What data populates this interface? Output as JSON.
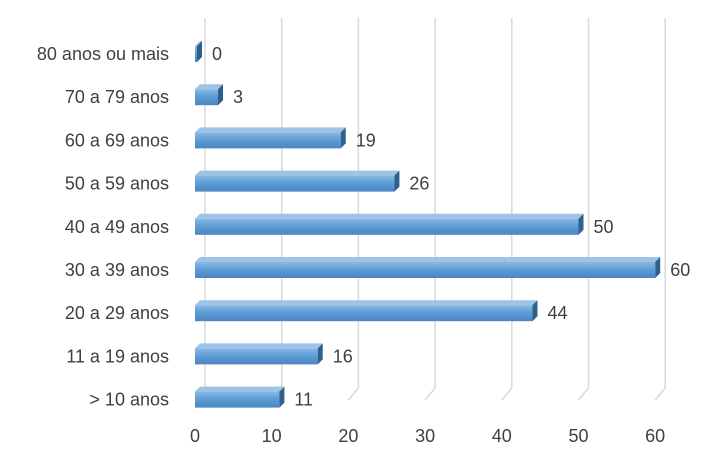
{
  "chart_data": {
    "type": "bar",
    "orientation": "horizontal",
    "style": "3d",
    "categories": [
      "80 anos ou mais",
      "70 a 79 anos",
      "60 a 69 anos",
      "50 a 59 anos",
      "40 a 49 anos",
      "30 a 39 anos",
      "20 a 29 anos",
      "11 a 19 anos",
      "> 10 anos"
    ],
    "values": [
      0,
      3,
      19,
      26,
      50,
      60,
      44,
      16,
      11
    ],
    "title": "",
    "xlabel": "",
    "ylabel": "",
    "xlim": [
      0,
      60
    ],
    "xticks": [
      0,
      10,
      20,
      30,
      40,
      50,
      60
    ],
    "grid": "vertical",
    "legend": "none",
    "data_labels": true,
    "colors": {
      "bar_front": "#5b9bd5",
      "bar_front_light": "#7fb2e0",
      "bar_top": "#9dc3e6",
      "bar_side": "#2e5f8f",
      "grid": "#d9d9d9",
      "text": "#404040"
    }
  }
}
